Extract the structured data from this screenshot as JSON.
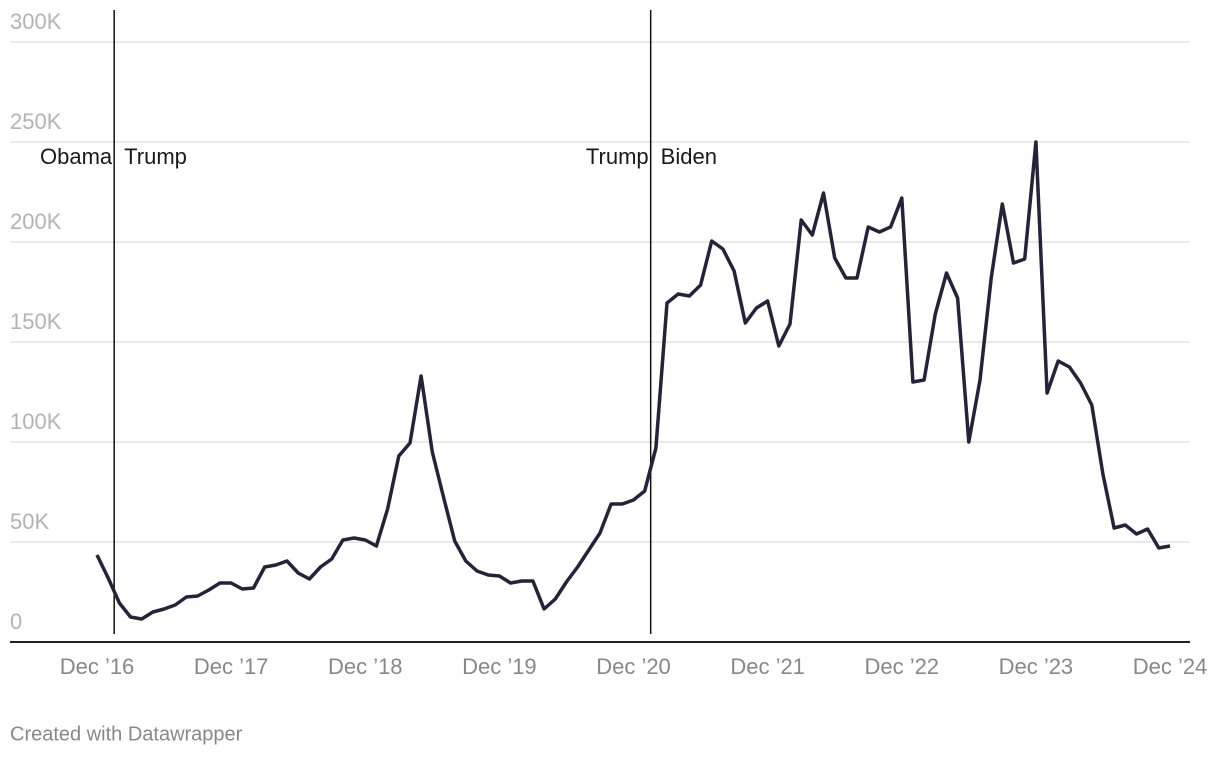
{
  "chart_data": {
    "type": "line",
    "footer": "Created with Datawrapper",
    "x": [
      "2016-12",
      "2017-01",
      "2017-02",
      "2017-03",
      "2017-04",
      "2017-05",
      "2017-06",
      "2017-07",
      "2017-08",
      "2017-09",
      "2017-10",
      "2017-11",
      "2017-12",
      "2018-01",
      "2018-02",
      "2018-03",
      "2018-04",
      "2018-05",
      "2018-06",
      "2018-07",
      "2018-08",
      "2018-09",
      "2018-10",
      "2018-11",
      "2018-12",
      "2019-01",
      "2019-02",
      "2019-03",
      "2019-04",
      "2019-05",
      "2019-06",
      "2019-07",
      "2019-08",
      "2019-09",
      "2019-10",
      "2019-11",
      "2019-12",
      "2020-01",
      "2020-02",
      "2020-03",
      "2020-04",
      "2020-05",
      "2020-06",
      "2020-07",
      "2020-08",
      "2020-09",
      "2020-10",
      "2020-11",
      "2020-12",
      "2021-01",
      "2021-02",
      "2021-03",
      "2021-04",
      "2021-05",
      "2021-06",
      "2021-07",
      "2021-08",
      "2021-09",
      "2021-10",
      "2021-11",
      "2021-12",
      "2022-01",
      "2022-02",
      "2022-03",
      "2022-04",
      "2022-05",
      "2022-06",
      "2022-07",
      "2022-08",
      "2022-09",
      "2022-10",
      "2022-11",
      "2022-12",
      "2023-01",
      "2023-02",
      "2023-03",
      "2023-04",
      "2023-05",
      "2023-06",
      "2023-07",
      "2023-08",
      "2023-09",
      "2023-10",
      "2023-11",
      "2023-12",
      "2024-01",
      "2024-02",
      "2024-03",
      "2024-04",
      "2024-05",
      "2024-06",
      "2024-07",
      "2024-08",
      "2024-09",
      "2024-10",
      "2024-11",
      "2024-12"
    ],
    "series": [
      {
        "color": "#25223a",
        "values": [
          43500,
          32000,
          19500,
          12500,
          11500,
          15000,
          16500,
          18500,
          22500,
          23000,
          26000,
          29500,
          29500,
          26500,
          27000,
          37500,
          38500,
          40500,
          34500,
          31500,
          37500,
          41500,
          51000,
          52000,
          51000,
          48000,
          66500,
          93000,
          99500,
          133000,
          95000,
          72500,
          50500,
          40500,
          35500,
          33500,
          33000,
          29500,
          30500,
          30500,
          16500,
          21500,
          30000,
          37500,
          46000,
          54500,
          69000,
          69000,
          71000,
          75500,
          97000,
          169500,
          174000,
          173000,
          178500,
          200500,
          196500,
          185500,
          159500,
          167000,
          170500,
          148000,
          159000,
          211000,
          203500,
          224500,
          192000,
          182000,
          182000,
          207500,
          205000,
          207500,
          222000,
          130000,
          131000,
          164000,
          184500,
          172000,
          100000,
          131000,
          182000,
          219000,
          189500,
          191500,
          250000,
          124500,
          140500,
          137500,
          129500,
          118500,
          84000,
          57000,
          58500,
          54000,
          56500,
          47000,
          48000
        ]
      }
    ],
    "ylim": [
      0,
      300000
    ],
    "yticks": [
      0,
      {
        "value": 50000,
        "label": "50K"
      },
      {
        "value": 100000,
        "label": "100K"
      },
      {
        "value": 150000,
        "label": "150K"
      },
      {
        "value": 200000,
        "label": "200K"
      },
      {
        "value": 250000,
        "label": "250K"
      },
      {
        "value": 300000,
        "label": "300K"
      }
    ],
    "xticks": [
      {
        "value": "2016-12",
        "label": "Dec ’16"
      },
      {
        "value": "2017-12",
        "label": "Dec ’17"
      },
      {
        "value": "2018-12",
        "label": "Dec ’18"
      },
      {
        "value": "2019-12",
        "label": "Dec ’19"
      },
      {
        "value": "2020-12",
        "label": "Dec ’20"
      },
      {
        "value": "2021-12",
        "label": "Dec ’21"
      },
      {
        "value": "2022-12",
        "label": "Dec ’22"
      },
      {
        "value": "2023-12",
        "label": "Dec ’23"
      },
      {
        "value": "2024-12",
        "label": "Dec ’24"
      }
    ],
    "annotations": [
      {
        "x": "2017-01",
        "before": "Obama",
        "after": "Trump"
      },
      {
        "x": "2021-01",
        "before": "Trump",
        "after": "Biden"
      }
    ],
    "grid": true
  }
}
